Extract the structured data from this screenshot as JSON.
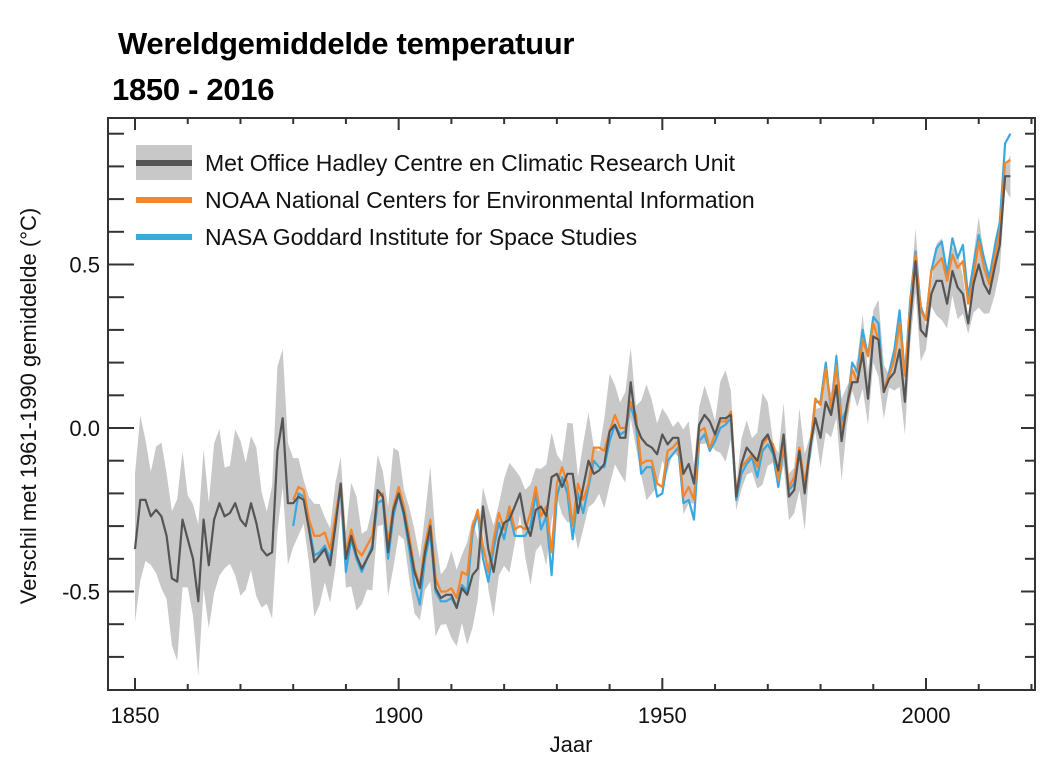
{
  "chart_data": {
    "type": "line",
    "title": "Wereldgemiddelde temperatuur",
    "subtitle": "1850 - 2016",
    "xlabel": "Jaar",
    "ylabel": "Verschil met 1961-1990 gemiddelde (°C)",
    "xlim": [
      1845,
      2020.5
    ],
    "ylim": [
      -0.8,
      0.95
    ],
    "x_ticks": [
      1850,
      1900,
      1950,
      2000
    ],
    "x_tick_labels": [
      "1850",
      "1900",
      "1950",
      "2000"
    ],
    "y_ticks": [
      -0.5,
      0.0,
      0.5
    ],
    "y_tick_labels": [
      "-0.5",
      "0.0",
      "0.5"
    ],
    "x_minor_step": 10,
    "y_minor_step": 0.1,
    "grid": false,
    "legend": {
      "placement": "top-left"
    },
    "colors": {
      "hadcrut": "#555555",
      "band": "#c8c8c8",
      "noaa": "#f4862a",
      "nasa": "#3aa8e0"
    },
    "series": [
      {
        "name": "Met Office Hadley Centre en Climatic Research Unit",
        "key": "hadcrut",
        "start_year": 1850,
        "values": [
          -0.37,
          -0.22,
          -0.22,
          -0.27,
          -0.25,
          -0.27,
          -0.33,
          -0.46,
          -0.47,
          -0.28,
          -0.34,
          -0.4,
          -0.53,
          -0.28,
          -0.42,
          -0.28,
          -0.23,
          -0.27,
          -0.26,
          -0.23,
          -0.28,
          -0.3,
          -0.23,
          -0.29,
          -0.37,
          -0.39,
          -0.38,
          -0.07,
          0.03,
          -0.23,
          -0.23,
          -0.21,
          -0.22,
          -0.31,
          -0.41,
          -0.39,
          -0.37,
          -0.42,
          -0.3,
          -0.17,
          -0.4,
          -0.33,
          -0.39,
          -0.43,
          -0.4,
          -0.37,
          -0.19,
          -0.21,
          -0.38,
          -0.25,
          -0.2,
          -0.26,
          -0.35,
          -0.44,
          -0.49,
          -0.38,
          -0.3,
          -0.49,
          -0.52,
          -0.51,
          -0.51,
          -0.55,
          -0.49,
          -0.51,
          -0.45,
          -0.43,
          -0.24,
          -0.37,
          -0.44,
          -0.34,
          -0.29,
          -0.28,
          -0.24,
          -0.2,
          -0.29,
          -0.33,
          -0.25,
          -0.24,
          -0.27,
          -0.15,
          -0.14,
          -0.18,
          -0.14,
          -0.14,
          -0.26,
          -0.18,
          -0.1,
          -0.14,
          -0.13,
          -0.11,
          -0.01,
          0.01,
          -0.03,
          -0.03,
          0.14,
          0.01,
          -0.03,
          -0.05,
          -0.06,
          -0.08,
          -0.02,
          -0.05,
          -0.03,
          -0.03,
          -0.14,
          -0.11,
          -0.17,
          0.01,
          0.04,
          0.02,
          -0.02,
          0.03,
          0.03,
          0.04,
          -0.21,
          -0.11,
          -0.06,
          -0.08,
          -0.1,
          -0.04,
          -0.02,
          -0.07,
          -0.13,
          -0.02,
          -0.21,
          -0.19,
          -0.07,
          -0.2,
          -0.06,
          0.03,
          -0.03,
          0.08,
          0.04,
          0.13,
          -0.04,
          0.07,
          0.14,
          0.14,
          0.23,
          0.09,
          0.28,
          0.27,
          0.11,
          0.15,
          0.17,
          0.24,
          0.08,
          0.33,
          0.51,
          0.3,
          0.28,
          0.41,
          0.45,
          0.45,
          0.38,
          0.48,
          0.43,
          0.41,
          0.32,
          0.44,
          0.5,
          0.44,
          0.41,
          0.49,
          0.56,
          0.77,
          0.77
        ]
      },
      {
        "name": "NOAA National Centers for Environmental Information",
        "key": "noaa",
        "start_year": 1880,
        "values": [
          -0.22,
          -0.18,
          -0.19,
          -0.28,
          -0.33,
          -0.33,
          -0.32,
          -0.37,
          -0.27,
          -0.17,
          -0.38,
          -0.31,
          -0.37,
          -0.39,
          -0.36,
          -0.33,
          -0.21,
          -0.2,
          -0.35,
          -0.24,
          -0.18,
          -0.24,
          -0.33,
          -0.43,
          -0.48,
          -0.36,
          -0.28,
          -0.46,
          -0.5,
          -0.5,
          -0.49,
          -0.52,
          -0.44,
          -0.45,
          -0.3,
          -0.25,
          -0.36,
          -0.44,
          -0.34,
          -0.26,
          -0.31,
          -0.24,
          -0.31,
          -0.3,
          -0.31,
          -0.26,
          -0.18,
          -0.27,
          -0.24,
          -0.38,
          -0.17,
          -0.12,
          -0.17,
          -0.3,
          -0.17,
          -0.22,
          -0.17,
          -0.06,
          -0.06,
          -0.07,
          -0.01,
          0.04,
          0.0,
          0.0,
          0.08,
          0.04,
          -0.11,
          -0.1,
          -0.1,
          -0.17,
          -0.18,
          -0.07,
          -0.06,
          -0.04,
          -0.21,
          -0.18,
          -0.22,
          -0.01,
          0.0,
          -0.06,
          -0.02,
          0.02,
          0.02,
          0.05,
          -0.2,
          -0.12,
          -0.1,
          -0.08,
          -0.12,
          -0.05,
          -0.03,
          -0.05,
          -0.16,
          -0.05,
          -0.18,
          -0.15,
          -0.06,
          -0.17,
          -0.06,
          0.09,
          0.07,
          0.18,
          0.06,
          0.19,
          0.0,
          0.05,
          0.18,
          0.14,
          0.27,
          0.22,
          0.32,
          0.27,
          0.12,
          0.16,
          0.21,
          0.32,
          0.16,
          0.37,
          0.53,
          0.36,
          0.33,
          0.48,
          0.5,
          0.52,
          0.45,
          0.53,
          0.49,
          0.51,
          0.38,
          0.46,
          0.57,
          0.49,
          0.44,
          0.52,
          0.6,
          0.81,
          0.82
        ]
      },
      {
        "name": "NASA Goddard Institute for Space Studies",
        "key": "nasa",
        "start_year": 1880,
        "values": [
          -0.3,
          -0.2,
          -0.21,
          -0.3,
          -0.39,
          -0.38,
          -0.36,
          -0.4,
          -0.28,
          -0.18,
          -0.44,
          -0.34,
          -0.4,
          -0.44,
          -0.4,
          -0.36,
          -0.23,
          -0.22,
          -0.4,
          -0.27,
          -0.2,
          -0.27,
          -0.37,
          -0.48,
          -0.54,
          -0.4,
          -0.32,
          -0.5,
          -0.53,
          -0.53,
          -0.52,
          -0.55,
          -0.48,
          -0.5,
          -0.32,
          -0.26,
          -0.4,
          -0.47,
          -0.37,
          -0.29,
          -0.34,
          -0.26,
          -0.33,
          -0.33,
          -0.33,
          -0.3,
          -0.2,
          -0.31,
          -0.27,
          -0.45,
          -0.21,
          -0.15,
          -0.2,
          -0.34,
          -0.2,
          -0.26,
          -0.18,
          -0.1,
          -0.12,
          -0.12,
          -0.04,
          0.01,
          -0.02,
          -0.01,
          0.07,
          0.01,
          -0.14,
          -0.12,
          -0.12,
          -0.21,
          -0.2,
          -0.1,
          -0.08,
          -0.06,
          -0.23,
          -0.22,
          -0.28,
          -0.04,
          -0.02,
          -0.07,
          -0.04,
          0.0,
          0.01,
          0.03,
          -0.22,
          -0.14,
          -0.11,
          -0.09,
          -0.15,
          -0.07,
          -0.05,
          -0.08,
          -0.18,
          -0.06,
          -0.19,
          -0.17,
          -0.07,
          -0.17,
          -0.08,
          0.08,
          0.08,
          0.2,
          0.05,
          0.22,
          0.02,
          0.06,
          0.2,
          0.17,
          0.3,
          0.22,
          0.34,
          0.32,
          0.11,
          0.17,
          0.24,
          0.36,
          0.16,
          0.39,
          0.54,
          0.37,
          0.33,
          0.48,
          0.55,
          0.57,
          0.47,
          0.58,
          0.52,
          0.56,
          0.4,
          0.5,
          0.59,
          0.52,
          0.46,
          0.55,
          0.63,
          0.87,
          0.9
        ]
      }
    ],
    "band": {
      "name": "Met Office uncertainty range",
      "start_year": 1850,
      "half_width_early": 0.2,
      "half_width_mid": 0.12,
      "half_width_late": 0.08
    }
  },
  "legend_items": [
    {
      "label": "Met Office Hadley Centre en Climatic Research Unit",
      "key": "hadcrut"
    },
    {
      "label": "NOAA National Centers for Environmental Information",
      "key": "noaa"
    },
    {
      "label": "NASA Goddard Institute for Space Studies",
      "key": "nasa"
    }
  ]
}
